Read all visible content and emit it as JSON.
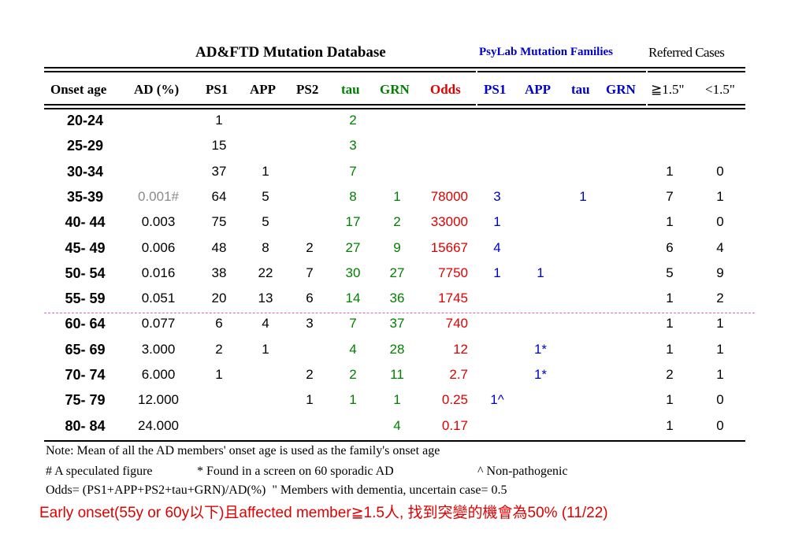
{
  "headers": {
    "database_title": "AD&FTD Mutation Database",
    "psylab_title": "PsyLab Mutation Families",
    "referred_title": "Referred Cases"
  },
  "columns": [
    "Onset age",
    "AD (%)",
    "PS1",
    "APP",
    "PS2",
    "tau",
    "GRN",
    "Odds",
    "PS1",
    "APP",
    "tau",
    "GRN",
    "≧1.5\"",
    "<1.5\""
  ],
  "rows": [
    {
      "age": "20-24",
      "ad": "",
      "ps1": "1",
      "app": "",
      "ps2": "",
      "tau": "2",
      "grn": "",
      "odds": "",
      "p_ps1": "",
      "p_app": "",
      "p_tau": "",
      "p_grn": "",
      "ge15": "",
      "lt15": ""
    },
    {
      "age": "25-29",
      "ad": "",
      "ps1": "15",
      "app": "",
      "ps2": "",
      "tau": "3",
      "grn": "",
      "odds": "",
      "p_ps1": "",
      "p_app": "",
      "p_tau": "",
      "p_grn": "",
      "ge15": "",
      "lt15": ""
    },
    {
      "age": "30-34",
      "ad": "",
      "ps1": "37",
      "app": "1",
      "ps2": "",
      "tau": "7",
      "grn": "",
      "odds": "",
      "p_ps1": "",
      "p_app": "",
      "p_tau": "",
      "p_grn": "",
      "ge15": "1",
      "lt15": "0"
    },
    {
      "age": "35-39",
      "ad": "0.001#",
      "ps1": "64",
      "app": "5",
      "ps2": "",
      "tau": "8",
      "grn": "1",
      "odds": "78000",
      "p_ps1": "3",
      "p_app": "",
      "p_tau": "1",
      "p_grn": "",
      "ge15": "7",
      "lt15": "1"
    },
    {
      "age": "40- 44",
      "ad": "0.003",
      "ps1": "75",
      "app": "5",
      "ps2": "",
      "tau": "17",
      "grn": "2",
      "odds": "33000",
      "p_ps1": "1",
      "p_app": "",
      "p_tau": "",
      "p_grn": "",
      "ge15": "1",
      "lt15": "0"
    },
    {
      "age": "45- 49",
      "ad": "0.006",
      "ps1": "48",
      "app": "8",
      "ps2": "2",
      "tau": "27",
      "grn": "9",
      "odds": "15667",
      "p_ps1": "4",
      "p_app": "",
      "p_tau": "",
      "p_grn": "",
      "ge15": "6",
      "lt15": "4"
    },
    {
      "age": "50- 54",
      "ad": "0.016",
      "ps1": "38",
      "app": "22",
      "ps2": "7",
      "tau": "30",
      "grn": "27",
      "odds": "7750",
      "p_ps1": "1",
      "p_app": "1",
      "p_tau": "",
      "p_grn": "",
      "ge15": "5",
      "lt15": "9"
    },
    {
      "age": "55- 59",
      "ad": "0.051",
      "ps1": "20",
      "app": "13",
      "ps2": "6",
      "tau": "14",
      "grn": "36",
      "odds": "1745",
      "p_ps1": "",
      "p_app": "",
      "p_tau": "",
      "p_grn": "",
      "ge15": "1",
      "lt15": "2"
    },
    {
      "age": "60- 64",
      "ad": "0.077",
      "ps1": "6",
      "app": "4",
      "ps2": "3",
      "tau": "7",
      "grn": "37",
      "odds": "740",
      "p_ps1": "",
      "p_app": "",
      "p_tau": "",
      "p_grn": "",
      "ge15": "1",
      "lt15": "1"
    },
    {
      "age": "65- 69",
      "ad": "3.000",
      "ps1": "2",
      "app": "1",
      "ps2": "",
      "tau": "4",
      "grn": "28",
      "odds": "12",
      "p_ps1": "",
      "p_app": "1*",
      "p_tau": "",
      "p_grn": "",
      "ge15": "1",
      "lt15": "1"
    },
    {
      "age": "70- 74",
      "ad": "6.000",
      "ps1": "1",
      "app": "",
      "ps2": "2",
      "tau": "2",
      "grn": "11",
      "odds": "2.7",
      "p_ps1": "",
      "p_app": "1*",
      "p_tau": "",
      "p_grn": "",
      "ge15": "2",
      "lt15": "1"
    },
    {
      "age": "75- 79",
      "ad": "12.000",
      "ps1": "",
      "app": "",
      "ps2": "1",
      "tau": "1",
      "grn": "1",
      "odds": "0.25",
      "p_ps1": "1^",
      "p_app": "",
      "p_tau": "",
      "p_grn": "",
      "ge15": "1",
      "lt15": "0"
    },
    {
      "age": "80- 84",
      "ad": "24.000",
      "ps1": "",
      "app": "",
      "ps2": "",
      "tau": "",
      "grn": "4",
      "odds": "0.17",
      "p_ps1": "",
      "p_app": "",
      "p_tau": "",
      "p_grn": "",
      "ge15": "1",
      "lt15": "0"
    }
  ],
  "notes": {
    "line1": "Note: Mean of all the AD members' onset age is used as the family's onset age",
    "line2a": "# A speculated figure",
    "line2b": "* Found in a screen on 60 sporadic AD",
    "line2c": "^ Non-pathogenic",
    "line3": "Odds= (PS1+APP+PS2+tau+GRN)/AD(%)  \" Members with dementia, uncertain case= 0.5",
    "conclusion": "Early onset(55y or 60y以下)且affected member≧1.5人, 找到突變的機會為50% (11/22)"
  },
  "colors": {
    "black": "#000000",
    "green": "#008000",
    "red": "#e00000",
    "blue": "#0000cc",
    "grey": "#8a8a8a",
    "divider": "#e060e0"
  }
}
